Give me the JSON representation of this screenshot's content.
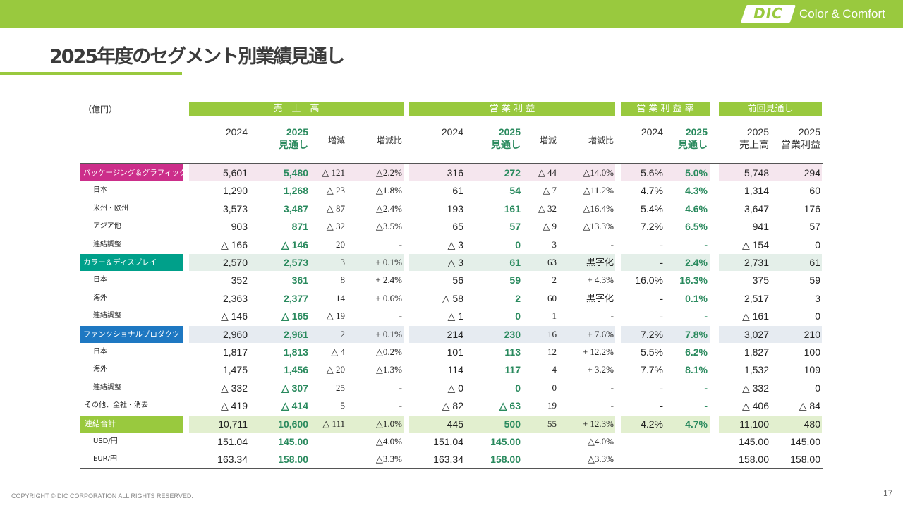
{
  "brand": {
    "logo_text": "DIC",
    "tagline": "Color & Comfort"
  },
  "title": "2025年度のセグメント別業績見通し",
  "unit": "（億円）",
  "groups": {
    "sales": "売　上　高",
    "op": "営 業 利 益",
    "margin": "営 業 利 益 率",
    "prev": "前回見通し"
  },
  "headers": {
    "s24": "2024",
    "s25a": "2025",
    "s25b": "見通し",
    "sdiff": "増減",
    "sratio": "増減比",
    "o24": "2024",
    "o25a": "2025",
    "o25b": "見通し",
    "odiff": "増減",
    "oratio": "増減比",
    "m24": "2024",
    "m25a": "2025",
    "m25b": "見通し",
    "p1a": "2025",
    "p1b": "売上高",
    "p2a": "2025",
    "p2b": "営業利益"
  },
  "colors": {
    "brand_green": "#99c93e",
    "value_green": "#2a8a5e",
    "pg": "#cc2e8a",
    "cd": "#00a08a",
    "fp": "#1e78c2"
  },
  "rows": [
    {
      "label": "パッケージング＆グラフィック",
      "type": "seg",
      "key": "pg",
      "v": [
        "5,601",
        "5,480",
        "△ 121",
        "△2.2%",
        "316",
        "272",
        "△ 44",
        "△14.0%",
        "5.6%",
        "5.0%",
        "5,748",
        "294"
      ]
    },
    {
      "label": "日本",
      "type": "sub",
      "v": [
        "1,290",
        "1,268",
        "△ 23",
        "△1.8%",
        "61",
        "54",
        "△ 7",
        "△11.2%",
        "4.7%",
        "4.3%",
        "1,314",
        "60"
      ]
    },
    {
      "label": "米州・欧州",
      "type": "sub",
      "v": [
        "3,573",
        "3,487",
        "△ 87",
        "△2.4%",
        "193",
        "161",
        "△ 32",
        "△16.4%",
        "5.4%",
        "4.6%",
        "3,647",
        "176"
      ]
    },
    {
      "label": "アジア他",
      "type": "sub",
      "v": [
        "903",
        "871",
        "△ 32",
        "△3.5%",
        "65",
        "57",
        "△ 9",
        "△13.3%",
        "7.2%",
        "6.5%",
        "941",
        "57"
      ]
    },
    {
      "label": "連結調整",
      "type": "sub",
      "v": [
        "△ 166",
        "△ 146",
        "20",
        "-",
        "△ 3",
        "0",
        "3",
        "-",
        "-",
        "-",
        "△ 154",
        "0"
      ]
    },
    {
      "label": "カラー＆ディスプレイ",
      "type": "seg",
      "key": "cd",
      "v": [
        "2,570",
        "2,573",
        "3",
        "+ 0.1%",
        "△ 3",
        "61",
        "63",
        "黒字化",
        "-",
        "2.4%",
        "2,731",
        "61"
      ]
    },
    {
      "label": "日本",
      "type": "sub",
      "v": [
        "352",
        "361",
        "8",
        "+ 2.4%",
        "56",
        "59",
        "2",
        "+ 4.3%",
        "16.0%",
        "16.3%",
        "375",
        "59"
      ]
    },
    {
      "label": "海外",
      "type": "sub",
      "v": [
        "2,363",
        "2,377",
        "14",
        "+ 0.6%",
        "△ 58",
        "2",
        "60",
        "黒字化",
        "-",
        "0.1%",
        "2,517",
        "3"
      ]
    },
    {
      "label": "連結調整",
      "type": "sub",
      "v": [
        "△ 146",
        "△ 165",
        "△ 19",
        "-",
        "△ 1",
        "0",
        "1",
        "-",
        "-",
        "-",
        "△ 161",
        "0"
      ]
    },
    {
      "label": "ファンクショナルプロダクツ",
      "type": "seg",
      "key": "fp",
      "v": [
        "2,960",
        "2,961",
        "2",
        "+ 0.1%",
        "214",
        "230",
        "16",
        "+ 7.6%",
        "7.2%",
        "7.8%",
        "3,027",
        "210"
      ]
    },
    {
      "label": "日本",
      "type": "sub",
      "v": [
        "1,817",
        "1,813",
        "△ 4",
        "△0.2%",
        "101",
        "113",
        "12",
        "+ 12.2%",
        "5.5%",
        "6.2%",
        "1,827",
        "100"
      ]
    },
    {
      "label": "海外",
      "type": "sub",
      "v": [
        "1,475",
        "1,456",
        "△ 20",
        "△1.3%",
        "114",
        "117",
        "4",
        "+ 3.2%",
        "7.7%",
        "8.1%",
        "1,532",
        "109"
      ]
    },
    {
      "label": "連結調整",
      "type": "sub",
      "v": [
        "△ 332",
        "△ 307",
        "25",
        "-",
        "△ 0",
        "0",
        "0",
        "-",
        "-",
        "-",
        "△ 332",
        "0"
      ]
    },
    {
      "label": "その他、全社・消去",
      "type": "other",
      "v": [
        "△ 419",
        "△ 414",
        "5",
        "-",
        "△ 82",
        "△ 63",
        "19",
        "-",
        "-",
        "-",
        "△ 406",
        "△ 84"
      ]
    },
    {
      "label": "連結合計",
      "type": "total",
      "v": [
        "10,711",
        "10,600",
        "△ 111",
        "△1.0%",
        "445",
        "500",
        "55",
        "+ 12.3%",
        "4.2%",
        "4.7%",
        "11,100",
        "480"
      ]
    },
    {
      "label": "USD/円",
      "type": "sub",
      "v": [
        "151.04",
        "145.00",
        "",
        "△4.0%",
        "151.04",
        "145.00",
        "",
        "△4.0%",
        "",
        "",
        "145.00",
        "145.00"
      ]
    },
    {
      "label": "EUR/円",
      "type": "sub",
      "v": [
        "163.34",
        "158.00",
        "",
        "△3.3%",
        "163.34",
        "158.00",
        "",
        "△3.3%",
        "",
        "",
        "158.00",
        "158.00"
      ]
    }
  ],
  "footer": "COPYRIGHT © DIC CORPORATION ALL RIGHTS RESERVED.",
  "page_number": "17"
}
